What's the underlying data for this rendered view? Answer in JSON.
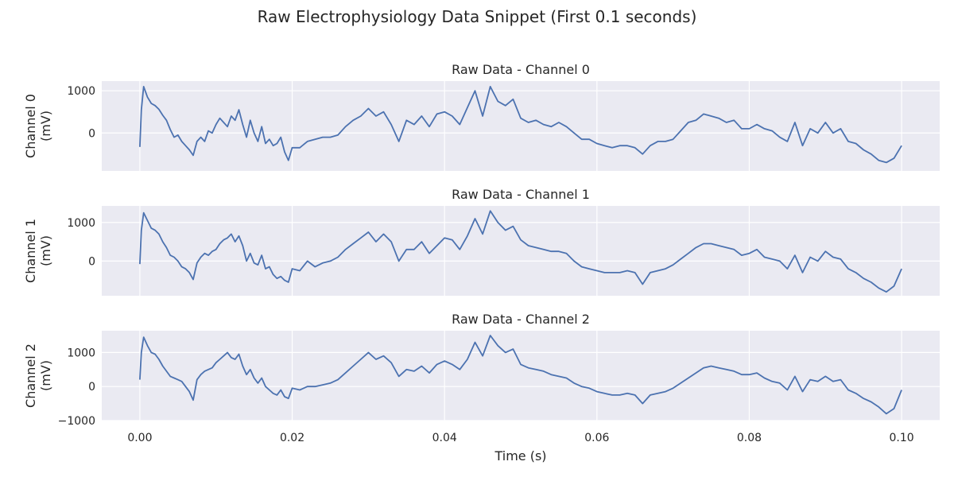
{
  "title": "Raw Electrophysiology Data Snippet (First 0.1 seconds)",
  "chart_data": [
    {
      "type": "line",
      "title": "Raw Data - Channel 0",
      "ylabel": [
        "Channel 0",
        "(mV)"
      ],
      "xlabel": "",
      "xlim": [
        -0.005,
        0.105
      ],
      "ylim": [
        -900,
        1230
      ],
      "yticks": [
        "0",
        "1000"
      ],
      "ytick_values": [
        0,
        1000
      ],
      "grid": true,
      "color": "#4c72b0",
      "x": [
        0.0,
        0.0002,
        0.0005,
        0.001,
        0.0015,
        0.002,
        0.0025,
        0.003,
        0.0035,
        0.004,
        0.0045,
        0.005,
        0.0055,
        0.006,
        0.0065,
        0.007,
        0.0075,
        0.008,
        0.0085,
        0.009,
        0.0095,
        0.01,
        0.0105,
        0.011,
        0.0115,
        0.012,
        0.0125,
        0.013,
        0.0135,
        0.014,
        0.0145,
        0.015,
        0.0155,
        0.016,
        0.0165,
        0.017,
        0.0175,
        0.018,
        0.0185,
        0.019,
        0.0195,
        0.02,
        0.021,
        0.022,
        0.023,
        0.024,
        0.025,
        0.026,
        0.027,
        0.028,
        0.029,
        0.03,
        0.031,
        0.032,
        0.033,
        0.034,
        0.035,
        0.036,
        0.037,
        0.038,
        0.039,
        0.04,
        0.041,
        0.042,
        0.043,
        0.044,
        0.045,
        0.046,
        0.047,
        0.048,
        0.049,
        0.05,
        0.051,
        0.052,
        0.053,
        0.054,
        0.055,
        0.056,
        0.057,
        0.058,
        0.059,
        0.06,
        0.061,
        0.062,
        0.063,
        0.064,
        0.065,
        0.066,
        0.067,
        0.068,
        0.069,
        0.07,
        0.071,
        0.072,
        0.073,
        0.074,
        0.075,
        0.076,
        0.077,
        0.078,
        0.079,
        0.08,
        0.081,
        0.082,
        0.083,
        0.084,
        0.085,
        0.086,
        0.087,
        0.088,
        0.089,
        0.09,
        0.091,
        0.092,
        0.093,
        0.094,
        0.095,
        0.096,
        0.097,
        0.098,
        0.099,
        0.1
      ],
      "y": [
        -330,
        550,
        1100,
        850,
        700,
        650,
        560,
        420,
        300,
        80,
        -100,
        -50,
        -200,
        -300,
        -400,
        -530,
        -200,
        -100,
        -200,
        50,
        0,
        200,
        350,
        250,
        150,
        400,
        300,
        550,
        200,
        -100,
        300,
        0,
        -200,
        150,
        -250,
        -150,
        -300,
        -250,
        -100,
        -450,
        -650,
        -350,
        -350,
        -200,
        -150,
        -100,
        -100,
        -50,
        150,
        300,
        400,
        580,
        400,
        500,
        200,
        -200,
        300,
        200,
        400,
        150,
        450,
        500,
        400,
        200,
        600,
        1000,
        400,
        1100,
        750,
        650,
        800,
        350,
        250,
        300,
        200,
        150,
        250,
        150,
        0,
        -150,
        -150,
        -250,
        -300,
        -350,
        -300,
        -300,
        -350,
        -500,
        -300,
        -200,
        -200,
        -150,
        50,
        250,
        300,
        450,
        400,
        350,
        250,
        300,
        100,
        100,
        200,
        100,
        50,
        -100,
        -200,
        250,
        -300,
        100,
        0,
        250,
        0,
        100,
        -200,
        -250,
        -400,
        -500,
        -650,
        -700,
        -600,
        -300
      ]
    },
    {
      "type": "line",
      "title": "Raw Data - Channel 1",
      "ylabel": [
        "Channel 1",
        "(mV)"
      ],
      "xlabel": "",
      "xlim": [
        -0.005,
        0.105
      ],
      "ylim": [
        -900,
        1430
      ],
      "yticks": [
        "0",
        "1000"
      ],
      "ytick_values": [
        0,
        1000
      ],
      "grid": true,
      "color": "#4c72b0",
      "x": [
        0.0,
        0.0002,
        0.0005,
        0.001,
        0.0015,
        0.002,
        0.0025,
        0.003,
        0.0035,
        0.004,
        0.0045,
        0.005,
        0.0055,
        0.006,
        0.0065,
        0.007,
        0.0075,
        0.008,
        0.0085,
        0.009,
        0.0095,
        0.01,
        0.0105,
        0.011,
        0.0115,
        0.012,
        0.0125,
        0.013,
        0.0135,
        0.014,
        0.0145,
        0.015,
        0.0155,
        0.016,
        0.0165,
        0.017,
        0.0175,
        0.018,
        0.0185,
        0.019,
        0.0195,
        0.02,
        0.021,
        0.022,
        0.023,
        0.024,
        0.025,
        0.026,
        0.027,
        0.028,
        0.029,
        0.03,
        0.031,
        0.032,
        0.033,
        0.034,
        0.035,
        0.036,
        0.037,
        0.038,
        0.039,
        0.04,
        0.041,
        0.042,
        0.043,
        0.044,
        0.045,
        0.046,
        0.047,
        0.048,
        0.049,
        0.05,
        0.051,
        0.052,
        0.053,
        0.054,
        0.055,
        0.056,
        0.057,
        0.058,
        0.059,
        0.06,
        0.061,
        0.062,
        0.063,
        0.064,
        0.065,
        0.066,
        0.067,
        0.068,
        0.069,
        0.07,
        0.071,
        0.072,
        0.073,
        0.074,
        0.075,
        0.076,
        0.077,
        0.078,
        0.079,
        0.08,
        0.081,
        0.082,
        0.083,
        0.084,
        0.085,
        0.086,
        0.087,
        0.088,
        0.089,
        0.09,
        0.091,
        0.092,
        0.093,
        0.094,
        0.095,
        0.096,
        0.097,
        0.098,
        0.099,
        0.1
      ],
      "y": [
        -80,
        800,
        1250,
        1050,
        850,
        800,
        700,
        500,
        350,
        150,
        100,
        0,
        -150,
        -200,
        -300,
        -480,
        -50,
        100,
        200,
        150,
        250,
        300,
        450,
        550,
        600,
        700,
        500,
        650,
        400,
        0,
        200,
        -50,
        -100,
        150,
        -200,
        -150,
        -350,
        -450,
        -400,
        -500,
        -550,
        -200,
        -250,
        0,
        -150,
        -50,
        0,
        100,
        300,
        450,
        600,
        750,
        500,
        700,
        500,
        0,
        300,
        300,
        500,
        200,
        400,
        600,
        550,
        300,
        650,
        1100,
        700,
        1300,
        1000,
        800,
        900,
        550,
        400,
        350,
        300,
        250,
        250,
        200,
        0,
        -150,
        -200,
        -250,
        -300,
        -300,
        -300,
        -250,
        -300,
        -600,
        -300,
        -250,
        -200,
        -100,
        50,
        200,
        350,
        450,
        450,
        400,
        350,
        300,
        150,
        200,
        300,
        100,
        50,
        0,
        -200,
        150,
        -300,
        100,
        0,
        250,
        100,
        50,
        -200,
        -300,
        -450,
        -550,
        -700,
        -800,
        -650,
        -200
      ]
    },
    {
      "type": "line",
      "title": "Raw Data - Channel 2",
      "ylabel": [
        "Channel 2",
        "(mV)"
      ],
      "xlabel": "Time (s)",
      "xlim": [
        -0.005,
        0.105
      ],
      "ylim": [
        -1000,
        1640
      ],
      "yticks": [
        "−1000",
        "0",
        "1000"
      ],
      "ytick_values": [
        -1000,
        0,
        1000
      ],
      "xticks": [
        "0.00",
        "0.02",
        "0.04",
        "0.06",
        "0.08",
        "0.10"
      ],
      "xtick_values": [
        0.0,
        0.02,
        0.04,
        0.06,
        0.08,
        0.1
      ],
      "grid": true,
      "color": "#4c72b0",
      "x": [
        0.0,
        0.0002,
        0.0005,
        0.001,
        0.0015,
        0.002,
        0.0025,
        0.003,
        0.0035,
        0.004,
        0.0045,
        0.005,
        0.0055,
        0.006,
        0.0065,
        0.007,
        0.0075,
        0.008,
        0.0085,
        0.009,
        0.0095,
        0.01,
        0.0105,
        0.011,
        0.0115,
        0.012,
        0.0125,
        0.013,
        0.0135,
        0.014,
        0.0145,
        0.015,
        0.0155,
        0.016,
        0.0165,
        0.017,
        0.0175,
        0.018,
        0.0185,
        0.019,
        0.0195,
        0.02,
        0.021,
        0.022,
        0.023,
        0.024,
        0.025,
        0.026,
        0.027,
        0.028,
        0.029,
        0.03,
        0.031,
        0.032,
        0.033,
        0.034,
        0.035,
        0.036,
        0.037,
        0.038,
        0.039,
        0.04,
        0.041,
        0.042,
        0.043,
        0.044,
        0.045,
        0.046,
        0.047,
        0.048,
        0.049,
        0.05,
        0.051,
        0.052,
        0.053,
        0.054,
        0.055,
        0.056,
        0.057,
        0.058,
        0.059,
        0.06,
        0.061,
        0.062,
        0.063,
        0.064,
        0.065,
        0.066,
        0.067,
        0.068,
        0.069,
        0.07,
        0.071,
        0.072,
        0.073,
        0.074,
        0.075,
        0.076,
        0.077,
        0.078,
        0.079,
        0.08,
        0.081,
        0.082,
        0.083,
        0.084,
        0.085,
        0.086,
        0.087,
        0.088,
        0.089,
        0.09,
        0.091,
        0.092,
        0.093,
        0.094,
        0.095,
        0.096,
        0.097,
        0.098,
        0.099,
        0.1
      ],
      "y": [
        200,
        1000,
        1450,
        1200,
        1000,
        950,
        800,
        600,
        450,
        300,
        250,
        200,
        150,
        0,
        -150,
        -400,
        200,
        350,
        450,
        500,
        550,
        700,
        800,
        900,
        1000,
        850,
        800,
        950,
        600,
        350,
        500,
        250,
        100,
        250,
        0,
        -100,
        -200,
        -250,
        -100,
        -300,
        -350,
        -50,
        -100,
        0,
        0,
        50,
        100,
        200,
        400,
        600,
        800,
        1000,
        800,
        900,
        700,
        300,
        500,
        450,
        600,
        400,
        650,
        750,
        650,
        500,
        800,
        1300,
        900,
        1500,
        1200,
        1000,
        1100,
        650,
        550,
        500,
        450,
        350,
        300,
        250,
        100,
        0,
        -50,
        -150,
        -200,
        -250,
        -250,
        -200,
        -250,
        -500,
        -250,
        -200,
        -150,
        -50,
        100,
        250,
        400,
        550,
        600,
        550,
        500,
        450,
        350,
        350,
        400,
        250,
        150,
        100,
        -100,
        300,
        -150,
        200,
        150,
        300,
        150,
        200,
        -100,
        -200,
        -350,
        -450,
        -600,
        -800,
        -650,
        -100
      ]
    }
  ]
}
